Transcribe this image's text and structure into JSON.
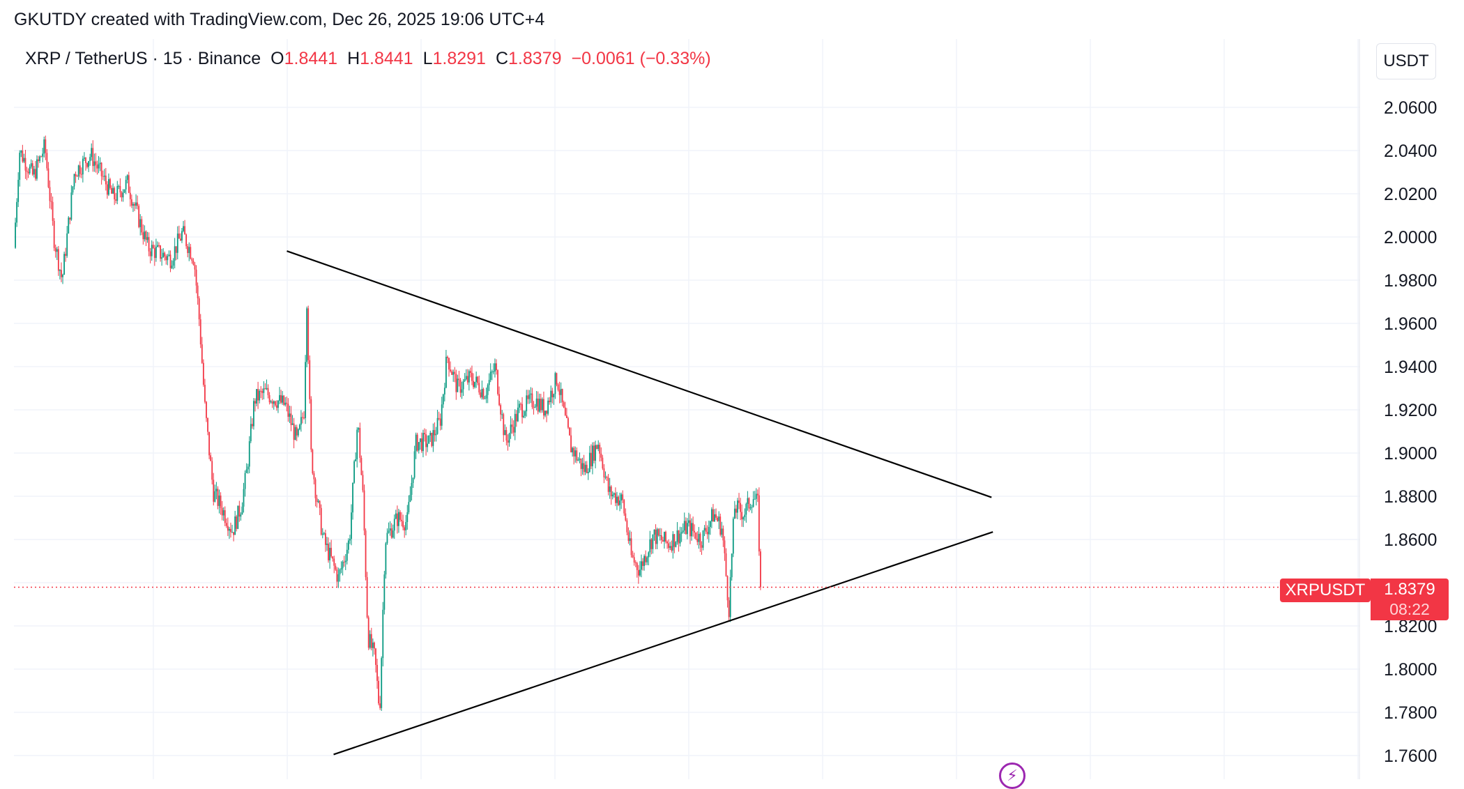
{
  "attribution": "GKUTDY created with TradingView.com, Dec 26, 2025 19:06 UTC+4",
  "legend": {
    "symbol": "XRP / TetherUS · 15 · Binance",
    "open_label": "O",
    "open": "1.8441",
    "high_label": "H",
    "high": "1.8441",
    "low_label": "L",
    "low": "1.8291",
    "close_label": "C",
    "close": "1.8379",
    "change": "−0.0061 (−0.33%)"
  },
  "currency_button": "USDT",
  "price_tags": {
    "symbol": "XRPUSDT",
    "last_price": "1.8379",
    "countdown": "08:22"
  },
  "colors": {
    "up": "#089981",
    "down": "#f23645",
    "trendline": "#000000",
    "grid": "#f0f3fa",
    "indicator_icon": "#9c27b0"
  },
  "icons": {
    "indicator": "lightning-bolt-icon"
  },
  "chart_data": {
    "type": "candlestick",
    "interval": "15",
    "exchange": "Binance",
    "pair": "XRP / TetherUS",
    "ylim": [
      1.752,
      2.081
    ],
    "y_ticks": [
      "2.0600",
      "2.0400",
      "2.0200",
      "2.0000",
      "1.9800",
      "1.9600",
      "1.9400",
      "1.9200",
      "1.9000",
      "1.8800",
      "1.8600",
      "1.8200",
      "1.8000",
      "1.7800",
      "1.7600"
    ],
    "last_price": 1.8379,
    "grid": true,
    "price_path": [
      [
        0,
        1.995
      ],
      [
        8,
        2.04
      ],
      [
        28,
        2.028
      ],
      [
        45,
        2.042
      ],
      [
        58,
        2.0
      ],
      [
        70,
        1.98
      ],
      [
        88,
        2.03
      ],
      [
        112,
        2.038
      ],
      [
        145,
        2.018
      ],
      [
        165,
        2.025
      ],
      [
        195,
        1.995
      ],
      [
        228,
        1.99
      ],
      [
        245,
        2.002
      ],
      [
        262,
        1.99
      ],
      [
        270,
        1.96
      ],
      [
        278,
        1.92
      ],
      [
        290,
        1.882
      ],
      [
        303,
        1.874
      ],
      [
        318,
        1.864
      ],
      [
        330,
        1.875
      ],
      [
        338,
        1.89
      ],
      [
        350,
        1.925
      ],
      [
        365,
        1.928
      ],
      [
        395,
        1.922
      ],
      [
        412,
        1.905
      ],
      [
        422,
        1.92
      ],
      [
        426,
        1.972
      ],
      [
        432,
        1.9
      ],
      [
        440,
        1.88
      ],
      [
        450,
        1.86
      ],
      [
        472,
        1.842
      ],
      [
        488,
        1.86
      ],
      [
        500,
        1.915
      ],
      [
        508,
        1.878
      ],
      [
        515,
        1.815
      ],
      [
        525,
        1.805
      ],
      [
        532,
        1.78
      ],
      [
        540,
        1.86
      ],
      [
        558,
        1.87
      ],
      [
        572,
        1.868
      ],
      [
        585,
        1.905
      ],
      [
        605,
        1.905
      ],
      [
        620,
        1.915
      ],
      [
        630,
        1.945
      ],
      [
        645,
        1.93
      ],
      [
        665,
        1.935
      ],
      [
        685,
        1.928
      ],
      [
        700,
        1.94
      ],
      [
        715,
        1.905
      ],
      [
        735,
        1.92
      ],
      [
        758,
        1.925
      ],
      [
        772,
        1.92
      ],
      [
        790,
        1.935
      ],
      [
        800,
        1.918
      ],
      [
        810,
        1.903
      ],
      [
        830,
        1.892
      ],
      [
        850,
        1.905
      ],
      [
        865,
        1.882
      ],
      [
        885,
        1.878
      ],
      [
        898,
        1.852
      ],
      [
        910,
        1.846
      ],
      [
        930,
        1.862
      ],
      [
        952,
        1.858
      ],
      [
        980,
        1.866
      ],
      [
        1000,
        1.86
      ],
      [
        1018,
        1.872
      ],
      [
        1030,
        1.865
      ],
      [
        1040,
        1.828
      ],
      [
        1048,
        1.875
      ],
      [
        1062,
        1.872
      ],
      [
        1075,
        1.88
      ],
      [
        1082,
        1.876
      ],
      [
        1086,
        1.838
      ]
    ],
    "candle_count": 520,
    "trendlines": [
      {
        "name": "upper",
        "p1": [
          397,
          1.9935
        ],
        "p2": [
          1422,
          1.8795
        ]
      },
      {
        "name": "lower",
        "p1": [
          465,
          1.7605
        ],
        "p2": [
          1424,
          1.8635
        ]
      }
    ]
  }
}
